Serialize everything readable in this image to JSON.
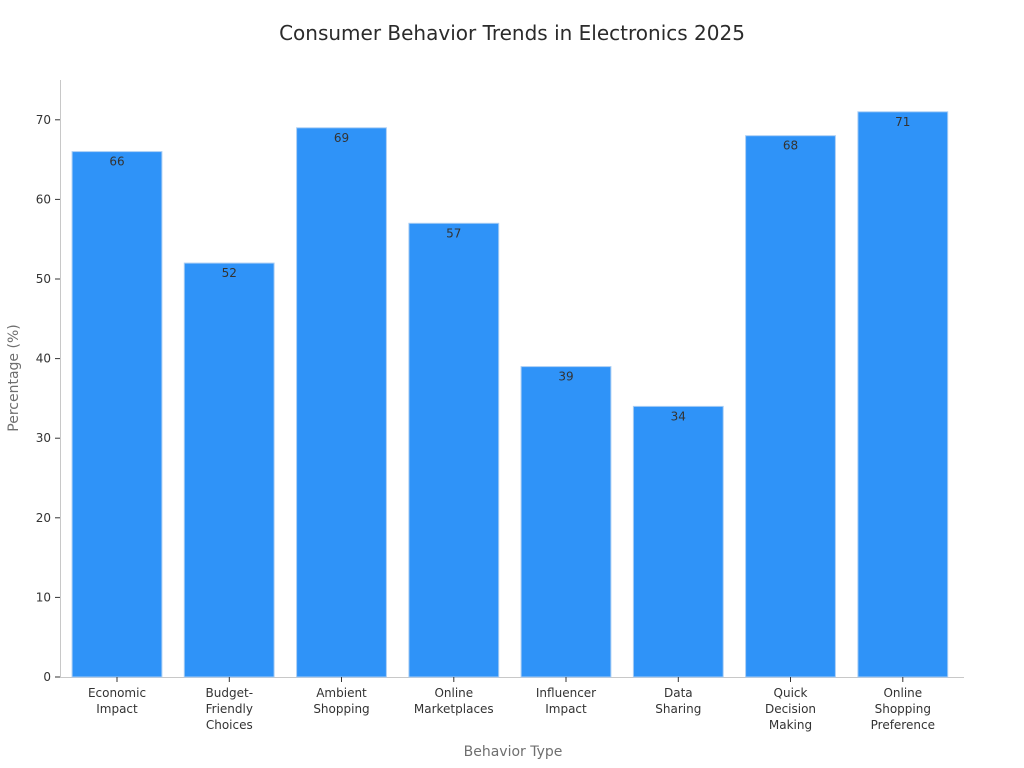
{
  "chart_data": {
    "type": "bar",
    "title": "Consumer Behavior Trends in Electronics 2025",
    "xlabel": "Behavior Type",
    "ylabel": "Percentage (%)",
    "categories": [
      "Economic Impact",
      "Budget-Friendly Choices",
      "Ambient Shopping",
      "Online Marketplaces",
      "Influencer Impact",
      "Data Sharing",
      "Quick Decision Making",
      "Online Shopping Preference"
    ],
    "category_lines": [
      [
        "Economic",
        "Impact"
      ],
      [
        "Budget-",
        "Friendly",
        "Choices"
      ],
      [
        "Ambient",
        "Shopping"
      ],
      [
        "Online",
        "Marketplaces"
      ],
      [
        "Influencer",
        "Impact"
      ],
      [
        "Data",
        "Sharing"
      ],
      [
        "Quick",
        "Decision",
        "Making"
      ],
      [
        "Online",
        "Shopping",
        "Preference"
      ]
    ],
    "values": [
      66,
      52,
      69,
      57,
      39,
      34,
      68,
      71
    ],
    "data_labels": [
      "66",
      "52",
      "69",
      "57",
      "39",
      "34",
      "68",
      "71"
    ],
    "ylim": [
      0,
      75
    ],
    "yticks": [
      0,
      10,
      20,
      30,
      40,
      50,
      60,
      70
    ],
    "ytick_labels": [
      "0",
      "10",
      "20",
      "30",
      "40",
      "50",
      "60",
      "70"
    ],
    "grid": false,
    "legend": "none",
    "bar_color": "#2f93f8"
  }
}
